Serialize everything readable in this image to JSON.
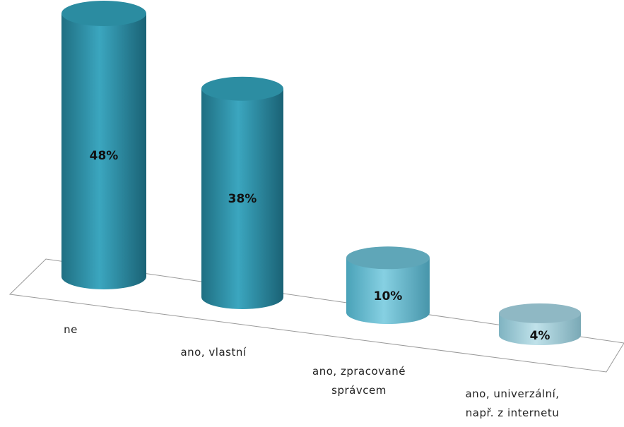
{
  "chart_data": {
    "type": "bar",
    "style": "3d-cylinder",
    "categories": [
      [
        "ne"
      ],
      [
        "ano, vlastní"
      ],
      [
        "ano, zpracované",
        "správcem"
      ],
      [
        "ano, univerzální,",
        "např. z internetu"
      ]
    ],
    "values": [
      48,
      38,
      10,
      4
    ],
    "data_labels": [
      "48%",
      "38%",
      "10%",
      "4%"
    ],
    "value_unit": "%",
    "ylim": [
      0,
      48
    ],
    "grid": false,
    "legend": "none",
    "colors": {
      "dark_bar": "#2a8aa0",
      "light_bar": "#6cbfd6",
      "pale_bar": "#a9cfd8",
      "floor_line": "#9a9a9a"
    }
  }
}
